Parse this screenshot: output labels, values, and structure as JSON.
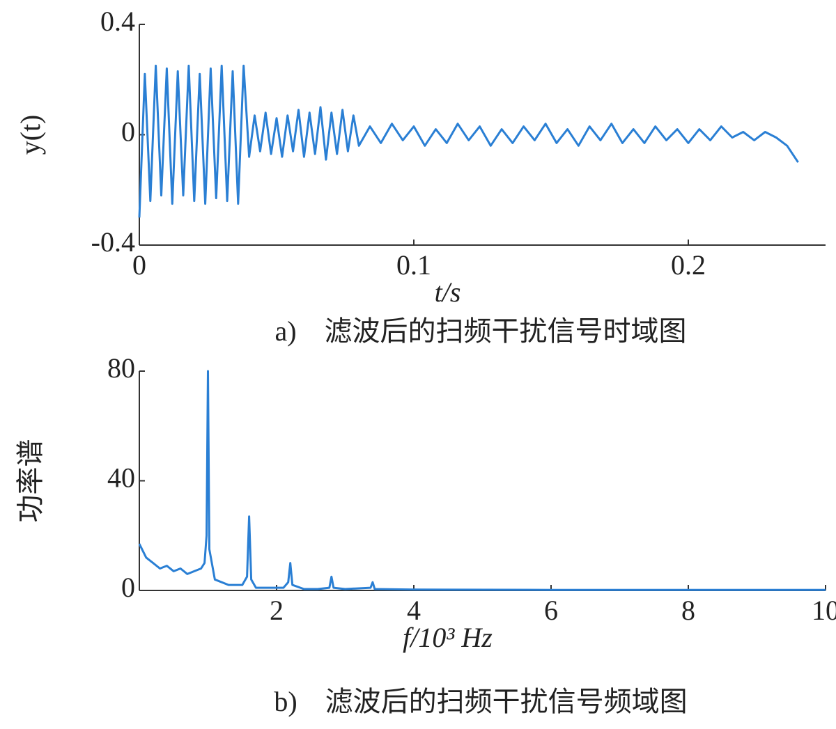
{
  "chart_data": [
    {
      "type": "line",
      "ylabel": "y(t)",
      "xlabel": "t/s",
      "caption": "a)　滤波后的扫频干扰信号时域图",
      "color": "#2a7fd4",
      "xlim": [
        0,
        0.25
      ],
      "xticks": [
        0,
        0.1,
        0.2
      ],
      "ylim": [
        -0.4,
        0.4
      ],
      "yticks": [
        -0.4,
        0,
        0.4
      ],
      "x": [
        0,
        0.002,
        0.004,
        0.006,
        0.008,
        0.01,
        0.012,
        0.014,
        0.016,
        0.018,
        0.02,
        0.022,
        0.024,
        0.026,
        0.028,
        0.03,
        0.032,
        0.034,
        0.036,
        0.038,
        0.04,
        0.042,
        0.044,
        0.046,
        0.048,
        0.05,
        0.052,
        0.054,
        0.056,
        0.058,
        0.06,
        0.062,
        0.064,
        0.066,
        0.068,
        0.07,
        0.072,
        0.074,
        0.076,
        0.078,
        0.08,
        0.084,
        0.088,
        0.092,
        0.096,
        0.1,
        0.104,
        0.108,
        0.112,
        0.116,
        0.12,
        0.124,
        0.128,
        0.132,
        0.136,
        0.14,
        0.144,
        0.148,
        0.152,
        0.156,
        0.16,
        0.164,
        0.168,
        0.172,
        0.176,
        0.18,
        0.184,
        0.188,
        0.192,
        0.196,
        0.2,
        0.204,
        0.208,
        0.212,
        0.216,
        0.22,
        0.224,
        0.228,
        0.232,
        0.236,
        0.24
      ],
      "values": [
        -0.3,
        0.22,
        -0.24,
        0.25,
        -0.22,
        0.24,
        -0.25,
        0.23,
        -0.22,
        0.25,
        -0.24,
        0.22,
        -0.25,
        0.24,
        -0.23,
        0.25,
        -0.24,
        0.23,
        -0.25,
        0.25,
        -0.08,
        0.07,
        -0.06,
        0.08,
        -0.07,
        0.06,
        -0.08,
        0.07,
        -0.06,
        0.09,
        -0.08,
        0.08,
        -0.07,
        0.1,
        -0.09,
        0.08,
        -0.07,
        0.09,
        -0.06,
        0.07,
        -0.04,
        0.03,
        -0.03,
        0.04,
        -0.02,
        0.03,
        -0.04,
        0.02,
        -0.03,
        0.04,
        -0.02,
        0.03,
        -0.04,
        0.02,
        -0.03,
        0.03,
        -0.02,
        0.04,
        -0.03,
        0.02,
        -0.04,
        0.03,
        -0.02,
        0.04,
        -0.03,
        0.02,
        -0.03,
        0.03,
        -0.02,
        0.02,
        -0.03,
        0.02,
        -0.02,
        0.03,
        -0.01,
        0.01,
        -0.02,
        0.01,
        -0.01,
        -0.04,
        -0.1
      ]
    },
    {
      "type": "line",
      "ylabel": "功率谱",
      "xlabel": "f/10³ Hz",
      "caption": "b)　滤波后的扫频干扰信号频域图",
      "color": "#2a7fd4",
      "xlim": [
        0,
        10
      ],
      "xticks": [
        2,
        4,
        6,
        8,
        10
      ],
      "ylim": [
        0,
        80
      ],
      "yticks": [
        0,
        40,
        80
      ],
      "x": [
        0,
        0.1,
        0.2,
        0.3,
        0.4,
        0.5,
        0.6,
        0.7,
        0.8,
        0.9,
        0.95,
        0.98,
        1.0,
        1.02,
        1.1,
        1.2,
        1.3,
        1.4,
        1.5,
        1.57,
        1.6,
        1.63,
        1.7,
        1.9,
        2.1,
        2.17,
        2.2,
        2.23,
        2.4,
        2.6,
        2.77,
        2.8,
        2.83,
        3.0,
        3.37,
        3.4,
        3.43,
        4,
        6,
        8,
        10
      ],
      "values": [
        17,
        12,
        10,
        8,
        9,
        7,
        8,
        6,
        7,
        8,
        10,
        20,
        80,
        15,
        4,
        3,
        2,
        2,
        2,
        5,
        27,
        4,
        1,
        1,
        1,
        3,
        10,
        2,
        0.5,
        0.5,
        1,
        5,
        1,
        0.5,
        1,
        3,
        0.5,
        0.3,
        0.2,
        0.2,
        0.2
      ]
    }
  ]
}
